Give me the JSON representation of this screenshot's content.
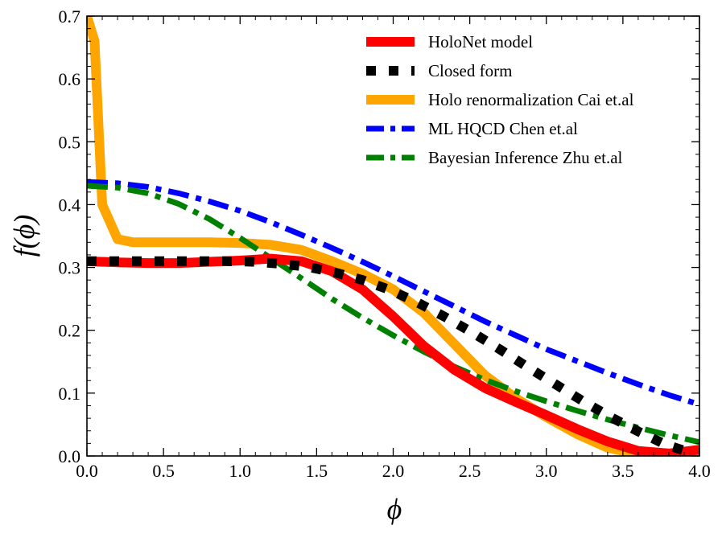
{
  "chart_data": {
    "type": "line",
    "title": "",
    "xlabel": "ϕ",
    "ylabel": "f(ϕ)",
    "xlim": [
      0.0,
      4.0
    ],
    "ylim": [
      0.0,
      0.7
    ],
    "xticks": [
      "0.0",
      "0.5",
      "1.0",
      "1.5",
      "2.0",
      "2.5",
      "3.0",
      "3.5",
      "4.0"
    ],
    "yticks": [
      "0.0",
      "0.1",
      "0.2",
      "0.3",
      "0.4",
      "0.5",
      "0.6",
      "0.7"
    ],
    "grid": false,
    "legend_position": "top-right",
    "series": [
      {
        "name": "HoloNet model",
        "color": "#ff0000",
        "style": "solid",
        "x": [
          0.0,
          0.2,
          0.4,
          0.6,
          0.8,
          1.0,
          1.2,
          1.4,
          1.6,
          1.8,
          2.0,
          2.2,
          2.4,
          2.6,
          2.8,
          3.0,
          3.2,
          3.4,
          3.6,
          3.8,
          4.0
        ],
        "y": [
          0.31,
          0.308,
          0.307,
          0.307,
          0.309,
          0.311,
          0.314,
          0.31,
          0.294,
          0.265,
          0.222,
          0.175,
          0.137,
          0.108,
          0.086,
          0.065,
          0.043,
          0.023,
          0.008,
          0.004,
          0.01
        ]
      },
      {
        "name": "Closed form",
        "color": "#000000",
        "style": "dotted",
        "x": [
          0.0,
          0.18,
          0.36,
          0.54,
          0.72,
          0.9,
          1.08,
          1.26,
          1.44,
          1.62,
          1.8,
          1.98,
          2.16,
          2.34,
          2.52,
          2.7,
          2.88,
          3.06,
          3.24,
          3.42,
          3.6,
          3.78,
          3.96
        ],
        "y": [
          0.31,
          0.31,
          0.31,
          0.31,
          0.31,
          0.31,
          0.309,
          0.306,
          0.301,
          0.292,
          0.28,
          0.264,
          0.244,
          0.221,
          0.196,
          0.169,
          0.141,
          0.114,
          0.087,
          0.062,
          0.039,
          0.018,
          0.004
        ]
      },
      {
        "name": "Holo renormalization Cai et.al",
        "color": "#ffa500",
        "style": "solid",
        "x": [
          0.0,
          0.05,
          0.1,
          0.2,
          0.3,
          0.5,
          0.8,
          1.0,
          1.2,
          1.4,
          1.6,
          1.8,
          2.0,
          2.2,
          2.4,
          2.6,
          2.8,
          3.0,
          3.2,
          3.4,
          3.6,
          3.8,
          4.0
        ],
        "y": [
          0.7,
          0.66,
          0.4,
          0.345,
          0.34,
          0.34,
          0.34,
          0.339,
          0.336,
          0.328,
          0.31,
          0.29,
          0.265,
          0.228,
          0.178,
          0.128,
          0.092,
          0.062,
          0.035,
          0.013,
          0.003,
          0.0,
          0.0
        ]
      },
      {
        "name": "ML HQCD Chen et.al",
        "color": "#0000ff",
        "style": "dashdot",
        "x": [
          0.0,
          0.2,
          0.4,
          0.6,
          0.8,
          1.0,
          1.2,
          1.4,
          1.6,
          1.8,
          2.0,
          2.2,
          2.4,
          2.6,
          2.8,
          3.0,
          3.2,
          3.4,
          3.6,
          3.8,
          4.0
        ],
        "y": [
          0.436,
          0.434,
          0.428,
          0.418,
          0.405,
          0.39,
          0.372,
          0.352,
          0.331,
          0.309,
          0.286,
          0.262,
          0.238,
          0.214,
          0.192,
          0.17,
          0.151,
          0.132,
          0.114,
          0.097,
          0.082
        ]
      },
      {
        "name": "Bayesian Inference Zhu et.al",
        "color": "#008000",
        "style": "dashdot",
        "x": [
          0.0,
          0.2,
          0.4,
          0.6,
          0.8,
          1.0,
          1.2,
          1.4,
          1.6,
          1.8,
          2.0,
          2.2,
          2.4,
          2.6,
          2.8,
          3.0,
          3.2,
          3.4,
          3.6,
          3.8,
          4.0
        ],
        "y": [
          0.43,
          0.427,
          0.418,
          0.401,
          0.377,
          0.347,
          0.315,
          0.283,
          0.25,
          0.22,
          0.192,
          0.166,
          0.142,
          0.121,
          0.103,
          0.087,
          0.072,
          0.058,
          0.045,
          0.033,
          0.022
        ]
      }
    ]
  }
}
